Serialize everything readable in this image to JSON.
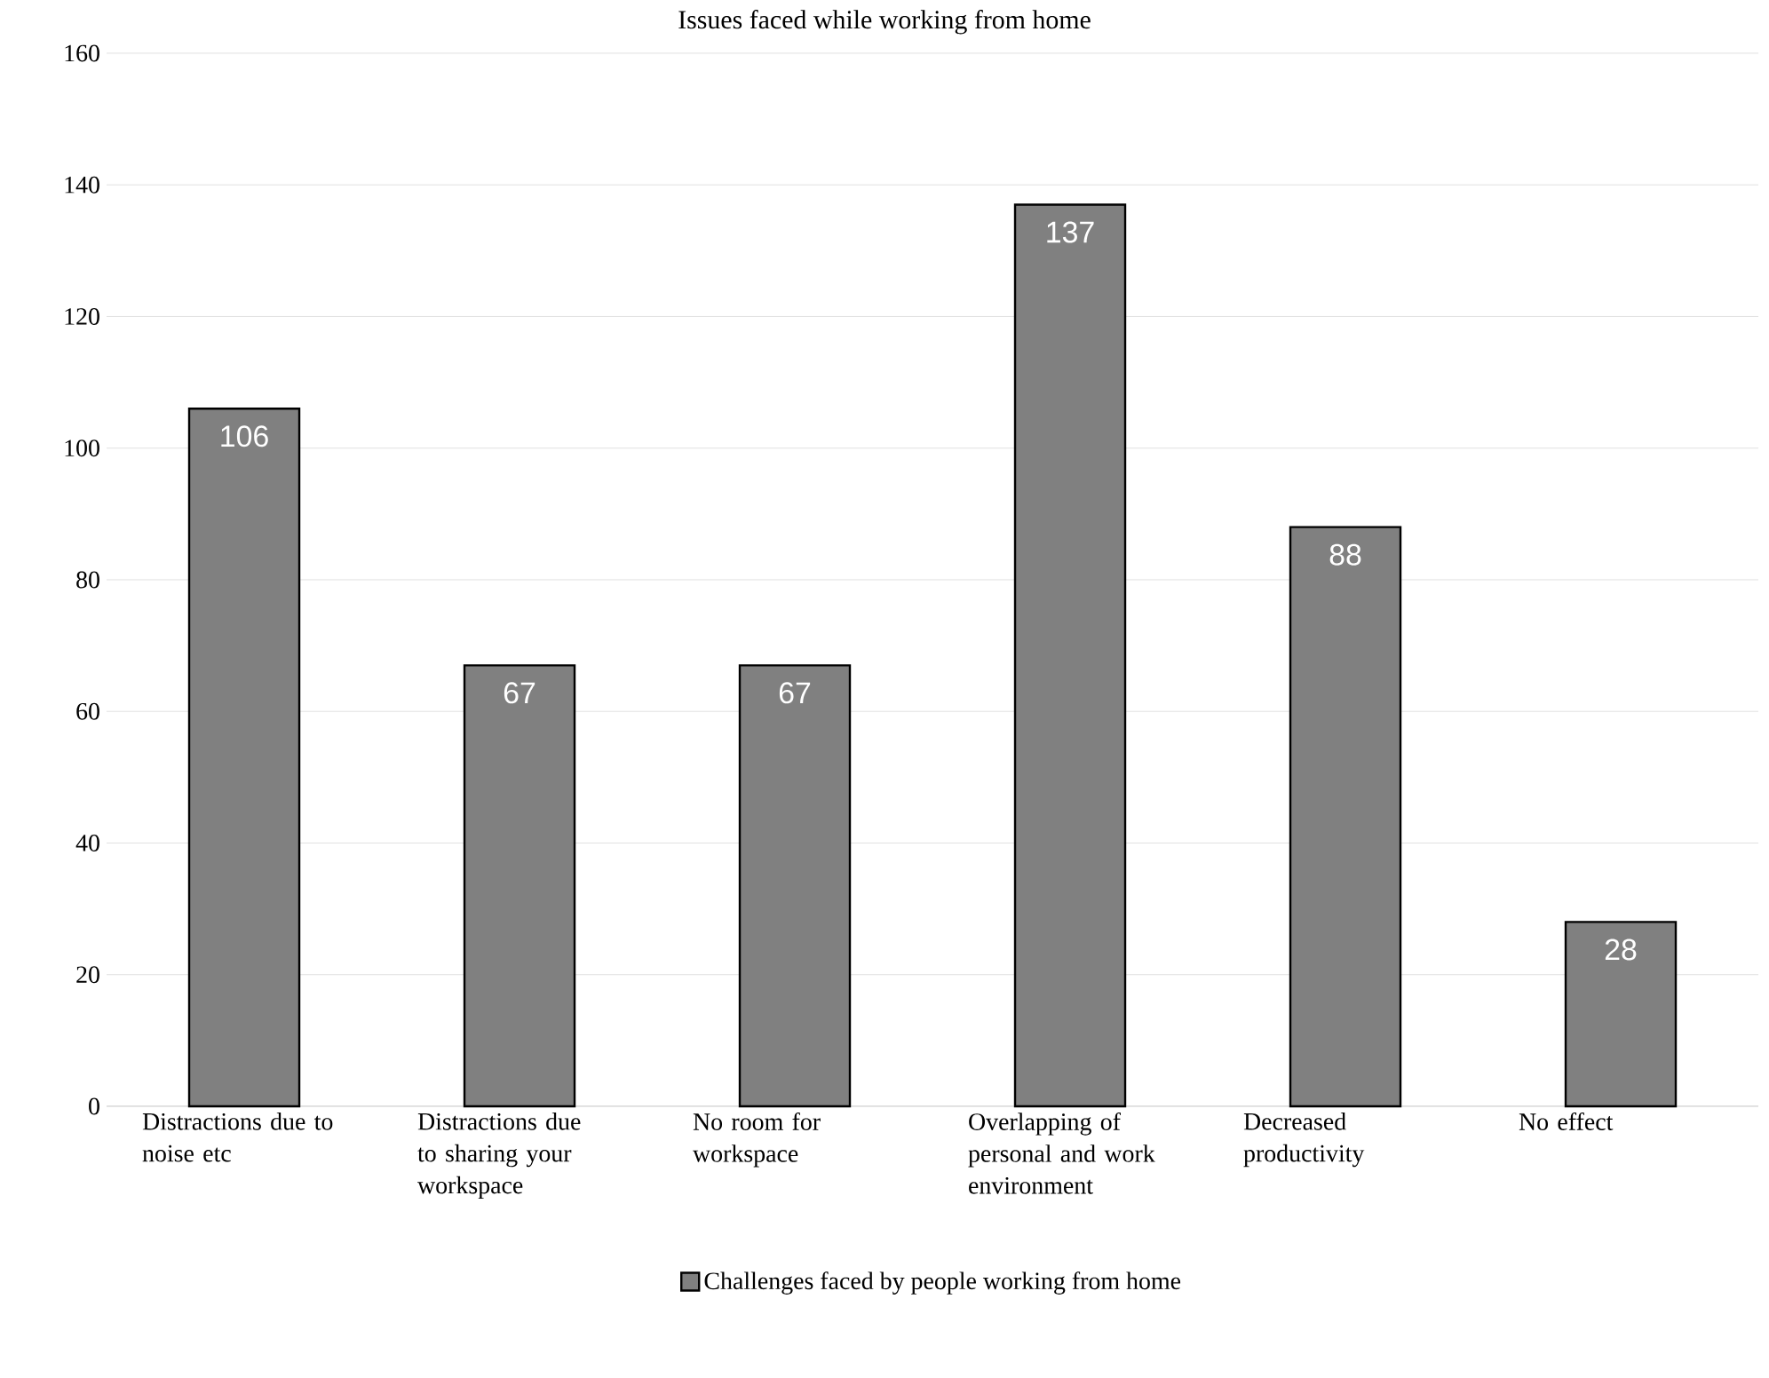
{
  "chart_data": {
    "type": "bar",
    "title": "Issues faced while working from home",
    "categories": [
      "Distractions due to noise etc",
      "Distractions due to sharing your workspace",
      "No room for workspace",
      "Overlapping of personal and work environment",
      "Decreased productivity",
      "No effect"
    ],
    "series": [
      {
        "name": "Challenges faced by people working from home",
        "color": "#808080",
        "values": [
          106,
          67,
          67,
          137,
          88,
          28
        ]
      }
    ],
    "ylim": [
      0,
      160
    ],
    "yticks": [
      0,
      20,
      40,
      60,
      80,
      100,
      120,
      140,
      160
    ],
    "grid": "y",
    "legend": "bottom",
    "data_labels": true
  }
}
